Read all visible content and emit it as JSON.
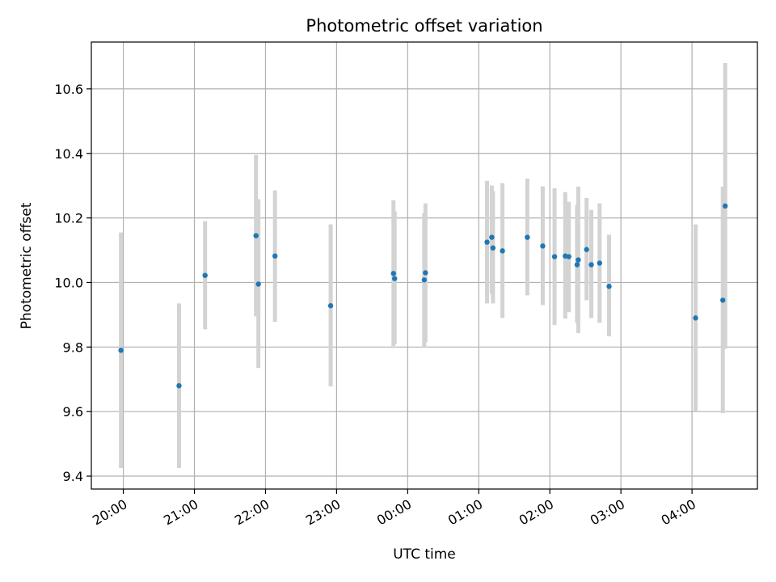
{
  "chart_data": {
    "type": "scatter",
    "title": "Photometric offset variation",
    "xlabel": "UTC time",
    "ylabel": "Photometric offset",
    "x_tick_labels": [
      "20:00",
      "21:00",
      "22:00",
      "23:00",
      "00:00",
      "01:00",
      "02:00",
      "03:00",
      "04:00"
    ],
    "x_ticks_hours": [
      20,
      21,
      22,
      23,
      24,
      25,
      26,
      27,
      28
    ],
    "xlim_hours": [
      19.55,
      28.92
    ],
    "y_ticks": [
      9.4,
      9.6,
      9.8,
      10.0,
      10.2,
      10.4,
      10.6
    ],
    "y_tick_labels": [
      "9.4",
      "9.6",
      "9.8",
      "10.0",
      "10.2",
      "10.4",
      "10.6"
    ],
    "ylim": [
      9.36,
      10.745
    ],
    "grid": true,
    "colors": {
      "points": "#1f77b4",
      "errorbars": "#d3d3d3",
      "grid": "#b0b0b0",
      "axes": "#000000"
    },
    "series": [
      {
        "points": [
          {
            "time": "19:58",
            "y": 9.79,
            "err_low": 9.425,
            "err_high": 10.155
          },
          {
            "time": "20:47",
            "y": 9.68,
            "err_low": 9.425,
            "err_high": 9.935
          },
          {
            "time": "21:09",
            "y": 10.022,
            "err_low": 9.855,
            "err_high": 10.19
          },
          {
            "time": "21:52",
            "y": 10.145,
            "err_low": 9.895,
            "err_high": 10.395
          },
          {
            "time": "21:54",
            "y": 9.995,
            "err_low": 9.735,
            "err_high": 10.258
          },
          {
            "time": "22:08",
            "y": 10.082,
            "err_low": 9.878,
            "err_high": 10.285
          },
          {
            "time": "22:55",
            "y": 9.928,
            "err_low": 9.678,
            "err_high": 10.18
          },
          {
            "time": "23:48",
            "y": 10.028,
            "err_low": 9.803,
            "err_high": 10.255
          },
          {
            "time": "23:49",
            "y": 10.012,
            "err_low": 9.81,
            "err_high": 10.22
          },
          {
            "time": "00:14",
            "y": 10.008,
            "err_low": 9.8,
            "err_high": 10.215
          },
          {
            "time": "00:15",
            "y": 10.03,
            "err_low": 9.815,
            "err_high": 10.245
          },
          {
            "time": "01:07",
            "y": 10.125,
            "err_low": 9.935,
            "err_high": 10.315
          },
          {
            "time": "01:11",
            "y": 10.14,
            "err_low": 9.965,
            "err_high": 10.3
          },
          {
            "time": "01:12",
            "y": 10.107,
            "err_low": 9.935,
            "err_high": 10.283
          },
          {
            "time": "01:20",
            "y": 10.098,
            "err_low": 9.89,
            "err_high": 10.308
          },
          {
            "time": "01:41",
            "y": 10.14,
            "err_low": 9.96,
            "err_high": 10.322
          },
          {
            "time": "01:54",
            "y": 10.113,
            "err_low": 9.93,
            "err_high": 10.298
          },
          {
            "time": "02:04",
            "y": 10.08,
            "err_low": 9.868,
            "err_high": 10.292
          },
          {
            "time": "02:13",
            "y": 10.082,
            "err_low": 9.888,
            "err_high": 10.28
          },
          {
            "time": "02:16",
            "y": 10.08,
            "err_low": 9.908,
            "err_high": 10.25
          },
          {
            "time": "02:23",
            "y": 10.055,
            "err_low": 9.875,
            "err_high": 10.24
          },
          {
            "time": "02:24",
            "y": 10.07,
            "err_low": 9.843,
            "err_high": 10.297
          },
          {
            "time": "02:31",
            "y": 10.102,
            "err_low": 9.945,
            "err_high": 10.262
          },
          {
            "time": "02:35",
            "y": 10.055,
            "err_low": 9.89,
            "err_high": 10.225
          },
          {
            "time": "02:42",
            "y": 10.06,
            "err_low": 9.875,
            "err_high": 10.245
          },
          {
            "time": "02:50",
            "y": 9.988,
            "err_low": 9.833,
            "err_high": 10.148
          },
          {
            "time": "04:03",
            "y": 9.89,
            "err_low": 9.6,
            "err_high": 10.18
          },
          {
            "time": "04:26",
            "y": 9.945,
            "err_low": 9.595,
            "err_high": 10.297
          },
          {
            "time": "04:28",
            "y": 10.237,
            "err_low": 9.795,
            "err_high": 10.68
          }
        ]
      }
    ]
  }
}
